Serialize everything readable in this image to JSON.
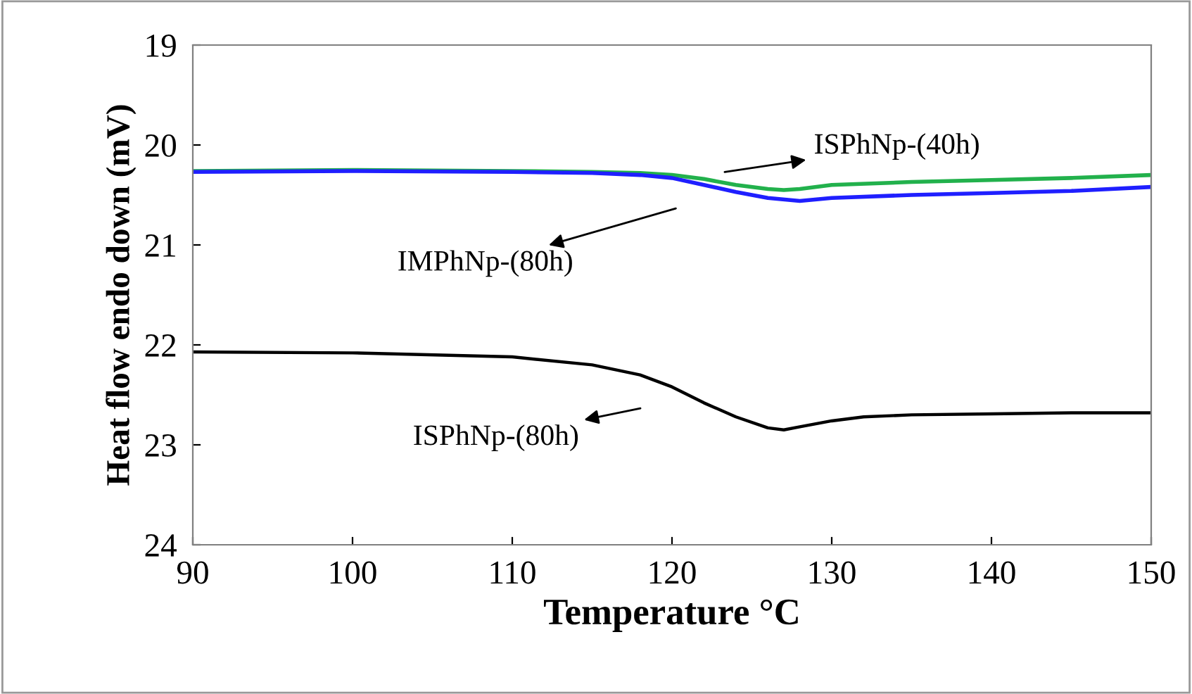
{
  "chart_data": {
    "type": "line",
    "xlabel": "Temperature °C",
    "ylabel": "Heat flow endo down (mV)",
    "xlim": [
      90,
      150
    ],
    "xticks": [
      90,
      100,
      110,
      120,
      130,
      140,
      150
    ],
    "ylim": [
      24,
      19
    ],
    "yticks": [
      19,
      20,
      21,
      22,
      23,
      24
    ],
    "grid": false,
    "legend": false,
    "marker": "none",
    "line_style": "solid",
    "series": [
      {
        "color": "#22b14c",
        "x": [
          90,
          100,
          110,
          115,
          118,
          120,
          122,
          124,
          126,
          127,
          128,
          130,
          135,
          140,
          145,
          150
        ],
        "values": [
          20.26,
          20.25,
          20.26,
          20.27,
          20.28,
          20.3,
          20.34,
          20.4,
          20.44,
          20.45,
          20.44,
          20.4,
          20.37,
          20.35,
          20.33,
          20.3
        ]
      },
      {
        "color": "#1f1fff",
        "x": [
          90,
          100,
          110,
          115,
          118,
          120,
          122,
          124,
          126,
          128,
          130,
          135,
          140,
          145,
          150
        ],
        "values": [
          20.27,
          20.26,
          20.27,
          20.28,
          20.3,
          20.33,
          20.4,
          20.47,
          20.53,
          20.56,
          20.53,
          20.5,
          20.48,
          20.46,
          20.42
        ]
      },
      {
        "color": "#000000",
        "x": [
          90,
          100,
          110,
          115,
          118,
          120,
          122,
          124,
          126,
          127,
          128,
          130,
          132,
          135,
          140,
          145,
          150
        ],
        "values": [
          22.07,
          22.08,
          22.12,
          22.2,
          22.3,
          22.42,
          22.58,
          22.72,
          22.83,
          22.85,
          22.82,
          22.76,
          22.72,
          22.7,
          22.69,
          22.68,
          22.68
        ]
      }
    ],
    "annotations": [
      "ISPhNp-(40h)",
      "IMPhNp-(80h)",
      "ISPhNp-(80h)"
    ]
  }
}
